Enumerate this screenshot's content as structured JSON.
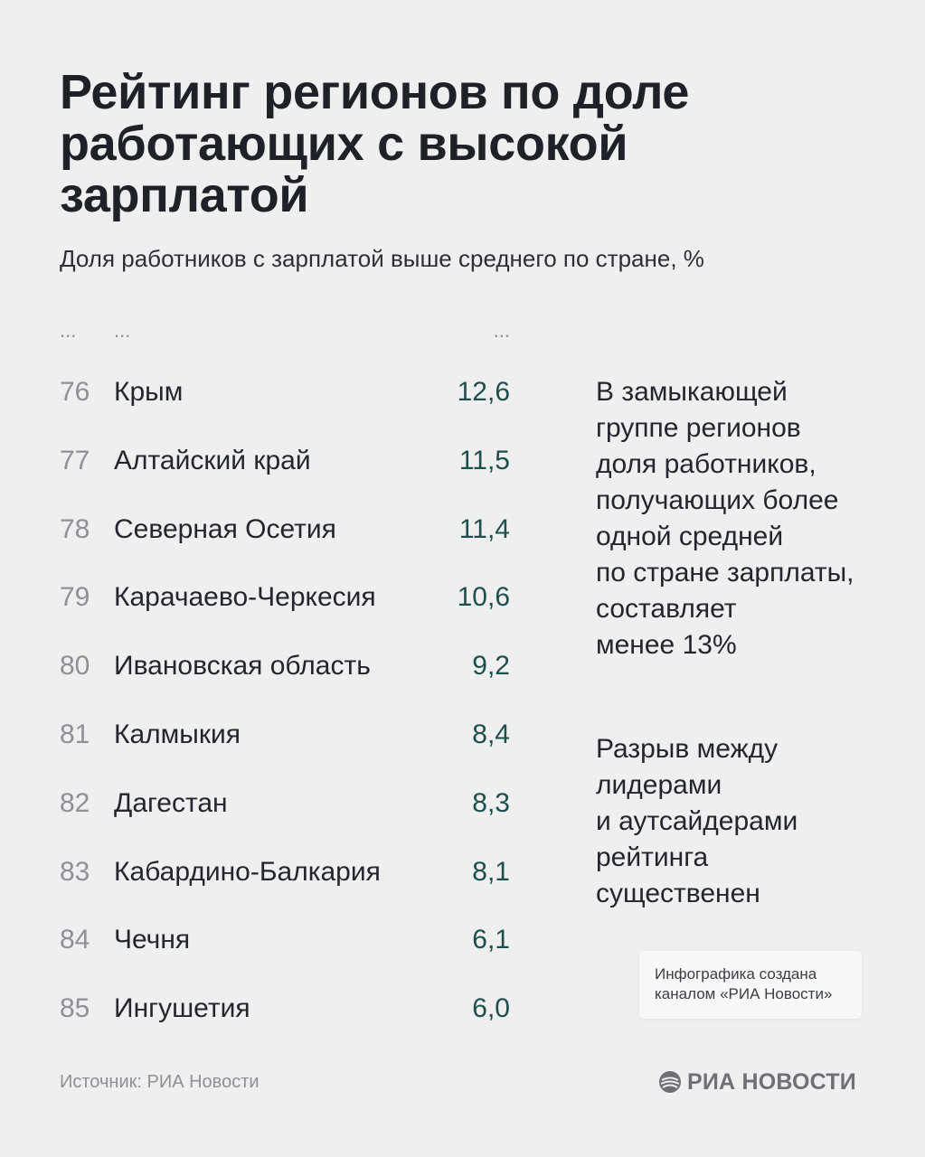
{
  "header": {
    "title": "Рейтинг регионов по доле работающих с высокой зарплатой",
    "subtitle": "Доля работников с зарплатой выше среднего по стране, %"
  },
  "table": {
    "ellipsis": {
      "rank": "...",
      "region": "...",
      "value": "..."
    },
    "rows": [
      {
        "rank": "76",
        "region": "Крым",
        "value": "12,6"
      },
      {
        "rank": "77",
        "region": "Алтайский край",
        "value": "11,5"
      },
      {
        "rank": "78",
        "region": "Северная Осетия",
        "value": "11,4"
      },
      {
        "rank": "79",
        "region": "Карачаево-Черкесия",
        "value": "10,6"
      },
      {
        "rank": "80",
        "region": "Ивановская область",
        "value": "9,2"
      },
      {
        "rank": "81",
        "region": "Калмыкия",
        "value": "8,4"
      },
      {
        "rank": "82",
        "region": "Дагестан",
        "value": "8,3"
      },
      {
        "rank": "83",
        "region": "Кабардино-Балкария",
        "value": "8,1"
      },
      {
        "rank": "84",
        "region": "Чечня",
        "value": "6,1"
      },
      {
        "rank": "85",
        "region": "Ингушетия",
        "value": "6,0"
      }
    ]
  },
  "notes": [
    {
      "lines": [
        "В замыкающей",
        "группе регионов",
        "доля работников,",
        "получающих более",
        "одной средней",
        "по стране зарплаты,",
        "составляет",
        "менее 13%"
      ]
    },
    {
      "lines": [
        "Разрыв между",
        "лидерами",
        "и аутсайдерами",
        "рейтинга",
        "существенен"
      ]
    }
  ],
  "credit": {
    "line1": "Инфографика создана",
    "line2": "каналом «РИА Новости»"
  },
  "footer": {
    "source": "Источник: РИА Новости",
    "brand": "РИА НОВОСТИ",
    "brand_icon": "ria-novosti-logo-icon"
  },
  "colors": {
    "background": "#efeff0",
    "title": "#1e2128",
    "value": "#1d4f4c",
    "rank": "#8e9096"
  }
}
